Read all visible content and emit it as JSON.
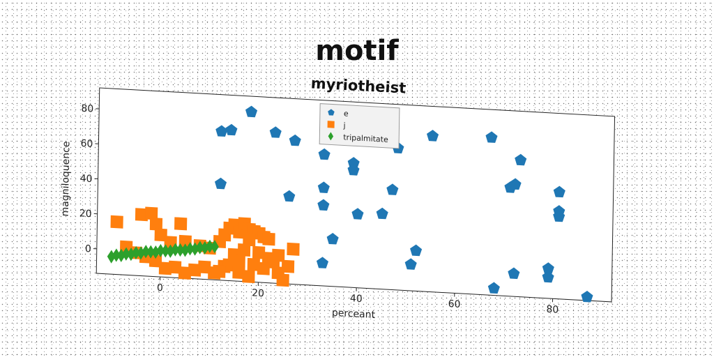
{
  "chart_data": {
    "type": "scatter",
    "title": "motif",
    "subtitle": "myriotheist",
    "xlabel": "perceant",
    "ylabel": "magniloquence",
    "xlim": [
      -13,
      92
    ],
    "ylim": [
      -14,
      92
    ],
    "xticks": [
      0,
      20,
      40,
      60,
      80
    ],
    "yticks": [
      0,
      20,
      40,
      60,
      80
    ],
    "grid": false,
    "legend_position": "top-center",
    "series": [
      {
        "name": "e",
        "marker": "pentagon",
        "color": "#1f77b4",
        "points": [
          [
            12,
            71
          ],
          [
            14,
            72
          ],
          [
            18,
            83
          ],
          [
            23,
            72
          ],
          [
            27,
            68
          ],
          [
            33,
            61
          ],
          [
            39,
            57
          ],
          [
            39,
            53
          ],
          [
            48,
            67
          ],
          [
            55,
            75
          ],
          [
            67,
            76
          ],
          [
            73,
            64
          ],
          [
            71,
            48
          ],
          [
            72,
            50
          ],
          [
            81,
            47
          ],
          [
            81,
            36
          ],
          [
            81,
            33
          ],
          [
            12,
            41
          ],
          [
            26,
            36
          ],
          [
            33,
            42
          ],
          [
            33,
            32
          ],
          [
            40,
            28
          ],
          [
            45,
            29
          ],
          [
            47,
            43
          ],
          [
            35,
            13
          ],
          [
            33,
            -1
          ],
          [
            52,
            9
          ],
          [
            51,
            1
          ],
          [
            68,
            -10
          ],
          [
            72,
            -1
          ],
          [
            79,
            3
          ],
          [
            79,
            -2
          ],
          [
            87,
            -12
          ]
        ]
      },
      {
        "name": "j",
        "marker": "square",
        "color": "#ff7f0e",
        "points": [
          [
            -9,
            16
          ],
          [
            -4,
            21
          ],
          [
            -2,
            22
          ],
          [
            -1,
            16
          ],
          [
            0,
            10
          ],
          [
            2,
            6
          ],
          [
            4,
            17
          ],
          [
            5,
            7
          ],
          [
            8,
            5
          ],
          [
            10,
            4
          ],
          [
            12,
            8
          ],
          [
            13,
            12
          ],
          [
            14,
            16
          ],
          [
            15,
            18
          ],
          [
            16,
            14
          ],
          [
            17,
            19
          ],
          [
            18,
            16
          ],
          [
            19,
            15
          ],
          [
            20,
            14
          ],
          [
            21,
            12
          ],
          [
            22,
            11
          ],
          [
            18,
            10
          ],
          [
            17,
            4
          ],
          [
            15,
            1
          ],
          [
            13,
            -6
          ],
          [
            11,
            -10
          ],
          [
            9,
            -7
          ],
          [
            7,
            -9
          ],
          [
            5,
            -11
          ],
          [
            3,
            -8
          ],
          [
            1,
            -9
          ],
          [
            -1,
            -5
          ],
          [
            -3,
            -3
          ],
          [
            -5,
            -1
          ],
          [
            -7,
            2
          ],
          [
            19,
            -4
          ],
          [
            21,
            -6
          ],
          [
            24,
            -8
          ],
          [
            25,
            -12
          ],
          [
            26,
            -4
          ],
          [
            27,
            6
          ],
          [
            24,
            2
          ],
          [
            22,
            0
          ],
          [
            20,
            3
          ],
          [
            16,
            -2
          ],
          [
            14,
            -5
          ],
          [
            12,
            -9
          ],
          [
            16,
            -9
          ],
          [
            18,
            -11
          ],
          [
            23,
            -2
          ]
        ]
      },
      {
        "name": "tripalmitate",
        "marker": "diamond",
        "color": "#2ca02c",
        "points": [
          [
            -10,
            -4
          ],
          [
            -9,
            -3
          ],
          [
            -8,
            -3
          ],
          [
            -7,
            -2
          ],
          [
            -6,
            -2
          ],
          [
            -5,
            -1
          ],
          [
            -4,
            -1
          ],
          [
            -3,
            0
          ],
          [
            -2,
            0
          ],
          [
            -1,
            0
          ],
          [
            0,
            1
          ],
          [
            1,
            1
          ],
          [
            2,
            1
          ],
          [
            3,
            2
          ],
          [
            4,
            2
          ],
          [
            5,
            2
          ],
          [
            6,
            3
          ],
          [
            7,
            3
          ],
          [
            8,
            4
          ],
          [
            9,
            4
          ],
          [
            10,
            5
          ],
          [
            11,
            5
          ]
        ]
      }
    ]
  }
}
